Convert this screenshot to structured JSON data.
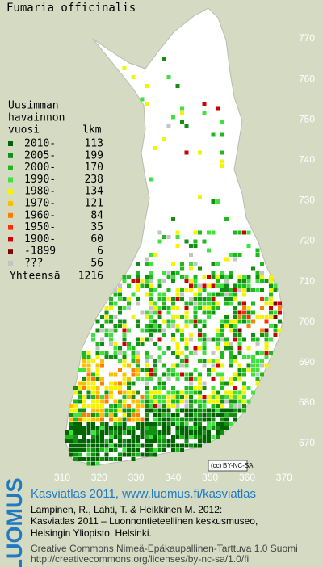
{
  "header": {
    "title": "Fumaria officinalis"
  },
  "legend": {
    "heading": [
      "Uusimman",
      "havainnon",
      "vuosi"
    ],
    "count_heading": "lkm",
    "rows": [
      {
        "label": "2010-",
        "count": 113,
        "color": "#006400"
      },
      {
        "label": "2005-",
        "count": 199,
        "color": "#138f13"
      },
      {
        "label": "2000-",
        "count": 170,
        "color": "#1fb81f"
      },
      {
        "label": "1990-",
        "count": 238,
        "color": "#40e040"
      },
      {
        "label": "1980-",
        "count": 134,
        "color": "#f4f400"
      },
      {
        "label": "1970-",
        "count": 121,
        "color": "#ffbf00"
      },
      {
        "label": "1960-",
        "count": 84,
        "color": "#ff7f00"
      },
      {
        "label": "1950-",
        "count": 35,
        "color": "#ff3000"
      },
      {
        "label": "1900-",
        "count": 60,
        "color": "#cc0000"
      },
      {
        "label": "-1899",
        "count": 6,
        "color": "#800000"
      },
      {
        "label": "???",
        "count": 56,
        "color": "#c4c4c4"
      }
    ],
    "total_label": "Yhteensä",
    "total": 1216
  },
  "grid": {
    "northing": [
      770,
      760,
      750,
      740,
      730,
      720,
      710,
      700,
      690,
      680,
      670
    ],
    "easting": [
      310,
      320,
      330,
      340,
      350,
      360,
      370
    ]
  },
  "badge": {
    "cc": "(cc)",
    "license": "BY-NC-SA"
  },
  "footer": {
    "brand": "LUOMUS",
    "link": "Kasviatlas 2011, www.luomus.fi/kasviatlas",
    "citation": [
      "Lampinen, R., Lahti, T. & Heikkinen M. 2012:",
      "Kasviatlas 2011 – Luonnontieteellinen keskusmuseo,",
      "Helsingin Yliopisto, Helsinki."
    ],
    "license": [
      "Creative Commons Nimeä-Epäkaupallinen-Tarttuva 1.0 Suomi",
      "http://creativecommons.org/licenses/by-nc-sa/1.0/fi"
    ]
  }
}
